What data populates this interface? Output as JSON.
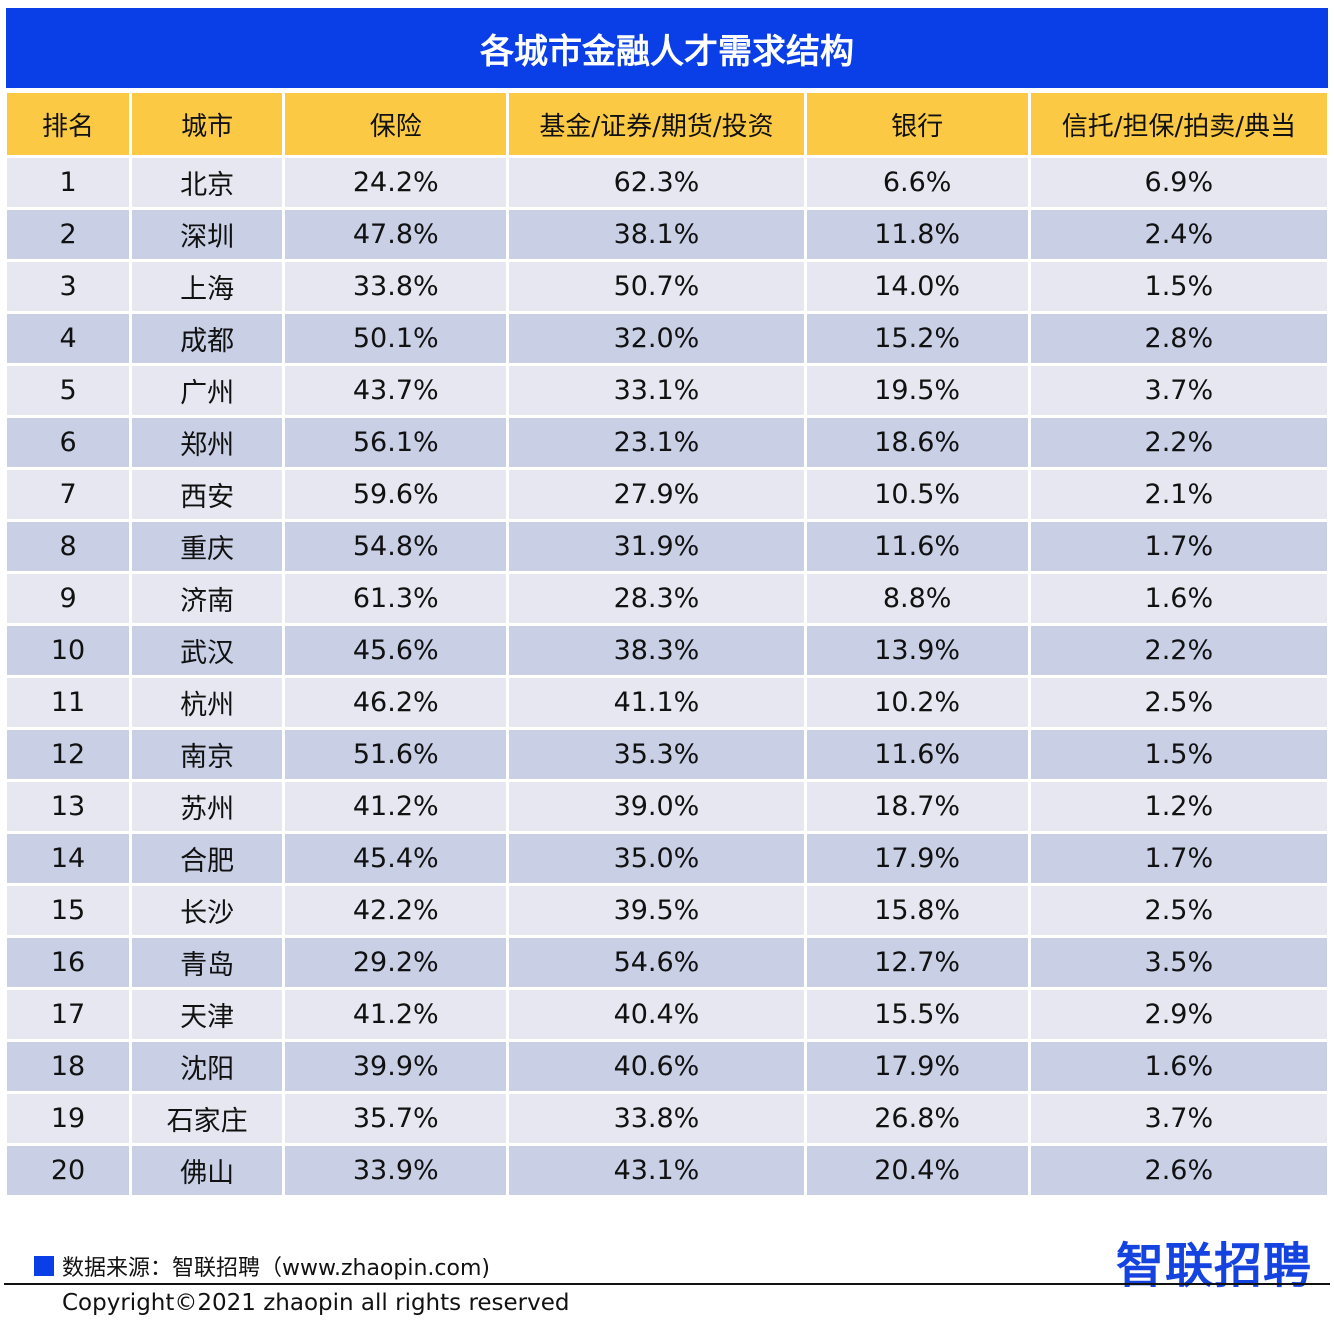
{
  "title": "各城市金融人才需求结构",
  "columns": [
    "排名",
    "城市",
    "保险",
    "基金/证券/期货/投资",
    "银行",
    "信托/担保/拍卖/典当"
  ],
  "rows": [
    [
      "1",
      "北京",
      "24.2%",
      "62.3%",
      "6.6%",
      "6.9%"
    ],
    [
      "2",
      "深圳",
      "47.8%",
      "38.1%",
      "11.8%",
      "2.4%"
    ],
    [
      "3",
      "上海",
      "33.8%",
      "50.7%",
      "14.0%",
      "1.5%"
    ],
    [
      "4",
      "成都",
      "50.1%",
      "32.0%",
      "15.2%",
      "2.8%"
    ],
    [
      "5",
      "广州",
      "43.7%",
      "33.1%",
      "19.5%",
      "3.7%"
    ],
    [
      "6",
      "郑州",
      "56.1%",
      "23.1%",
      "18.6%",
      "2.2%"
    ],
    [
      "7",
      "西安",
      "59.6%",
      "27.9%",
      "10.5%",
      "2.1%"
    ],
    [
      "8",
      "重庆",
      "54.8%",
      "31.9%",
      "11.6%",
      "1.7%"
    ],
    [
      "9",
      "济南",
      "61.3%",
      "28.3%",
      "8.8%",
      "1.6%"
    ],
    [
      "10",
      "武汉",
      "45.6%",
      "38.3%",
      "13.9%",
      "2.2%"
    ],
    [
      "11",
      "杭州",
      "46.2%",
      "41.1%",
      "10.2%",
      "2.5%"
    ],
    [
      "12",
      "南京",
      "51.6%",
      "35.3%",
      "11.6%",
      "1.5%"
    ],
    [
      "13",
      "苏州",
      "41.2%",
      "39.0%",
      "18.7%",
      "1.2%"
    ],
    [
      "14",
      "合肥",
      "45.4%",
      "35.0%",
      "17.9%",
      "1.7%"
    ],
    [
      "15",
      "长沙",
      "42.2%",
      "39.5%",
      "15.8%",
      "2.5%"
    ],
    [
      "16",
      "青岛",
      "29.2%",
      "54.6%",
      "12.7%",
      "3.5%"
    ],
    [
      "17",
      "天津",
      "41.2%",
      "40.4%",
      "15.5%",
      "2.9%"
    ],
    [
      "18",
      "沈阳",
      "39.9%",
      "40.6%",
      "17.9%",
      "1.6%"
    ],
    [
      "19",
      "石家庄",
      "35.7%",
      "33.8%",
      "26.8%",
      "3.7%"
    ],
    [
      "20",
      "佛山",
      "33.9%",
      "43.1%",
      "20.4%",
      "2.6%"
    ]
  ],
  "footer": {
    "source": "数据来源：智联招聘（www.zhaopin.com)",
    "logo": "智联招聘",
    "copyright": "Copyright©2021 zhaopin all rights reserved"
  },
  "colors": {
    "title_bg": "#0a3ee6",
    "header_bg": "#fbc944",
    "row_light": "#e6e7f0",
    "row_dark": "#c9d0e6"
  }
}
